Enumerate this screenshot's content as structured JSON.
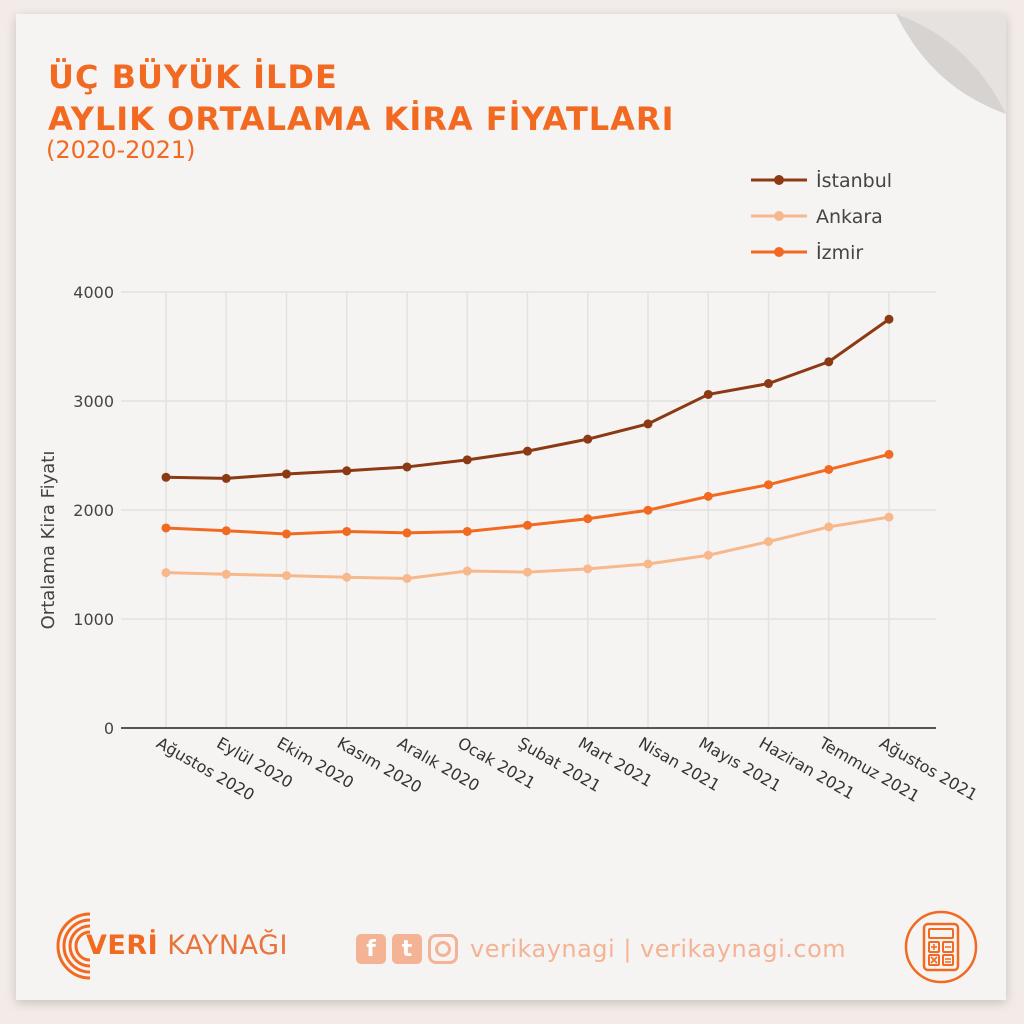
{
  "header": {
    "title_line1": "ÜÇ BÜYÜK İLDE",
    "title_line2": "AYLIK ORTALAMA KİRA FİYATLARI",
    "subtitle": "(2020-2021)"
  },
  "chart_data": {
    "type": "line",
    "categories": [
      "Ağustos 2020",
      "Eylül 2020",
      "Ekim 2020",
      "Kasım 2020",
      "Aralık 2020",
      "Ocak 2021",
      "Şubat 2021",
      "Mart 2021",
      "Nisan 2021",
      "Mayıs 2021",
      "Haziran 2021",
      "Temmuz 2021",
      "Ağustos 2021"
    ],
    "series": [
      {
        "name": "İstanbul",
        "color": "#8b3a14",
        "values": [
          2300,
          2290,
          2330,
          2360,
          2395,
          2460,
          2540,
          2650,
          2790,
          3060,
          3160,
          3360,
          3750
        ]
      },
      {
        "name": "Ankara",
        "color": "#f7b98c",
        "values": [
          1425,
          1410,
          1398,
          1383,
          1372,
          1440,
          1430,
          1460,
          1505,
          1585,
          1710,
          1845,
          1935
        ]
      },
      {
        "name": "İzmir",
        "color": "#f26a21",
        "values": [
          1835,
          1810,
          1780,
          1803,
          1790,
          1803,
          1860,
          1920,
          1998,
          2125,
          2232,
          2372,
          2510
        ]
      }
    ],
    "ylabel": "Ortalama Kira Fiyatı",
    "xlabel": "",
    "ylim": [
      0,
      4000
    ],
    "yticks": [
      0,
      1000,
      2000,
      3000,
      4000
    ],
    "grid": true,
    "legend": "top-right"
  },
  "footer": {
    "brand_bold": "VERİ",
    "brand_light": "KAYNAĞI",
    "social_fb": "f",
    "social_tw": "t",
    "social_text": "verikaynagi | verikaynagi.com",
    "icons": [
      "facebook-icon",
      "twitter-icon",
      "instagram-icon",
      "calculator-icon"
    ]
  }
}
